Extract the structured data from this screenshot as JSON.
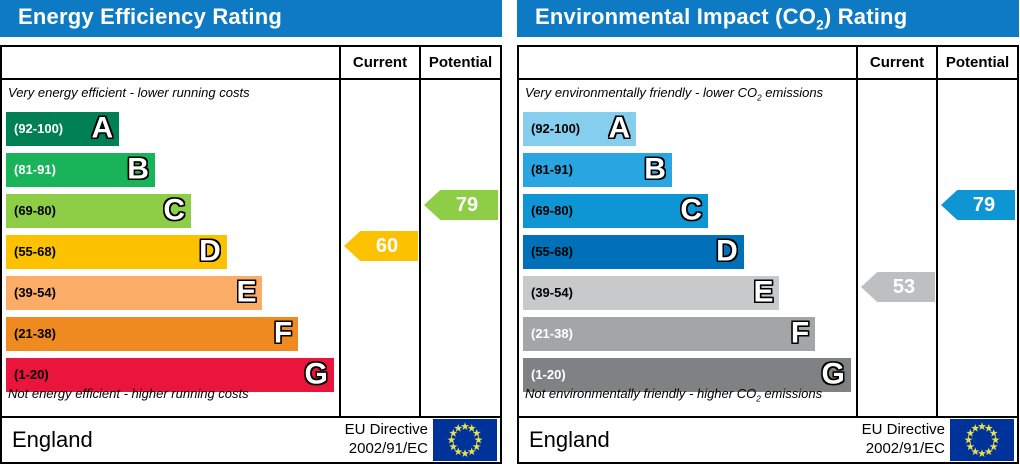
{
  "chart_data": [
    {
      "type": "bar",
      "title": "Energy Efficiency Rating",
      "categories": [
        "A (92-100)",
        "B (81-91)",
        "C (69-80)",
        "D (55-68)",
        "E (39-54)",
        "F (21-38)",
        "G (1-20)"
      ],
      "band_ranges": [
        [
          92,
          100
        ],
        [
          81,
          91
        ],
        [
          69,
          80
        ],
        [
          55,
          68
        ],
        [
          39,
          54
        ],
        [
          21,
          38
        ],
        [
          1,
          20
        ]
      ],
      "current": 60,
      "current_band": "D",
      "potential": 79,
      "potential_band": "C",
      "xlabel": "",
      "ylabel": "",
      "legend": [
        "Current",
        "Potential"
      ]
    },
    {
      "type": "bar",
      "title": "Environmental Impact (CO2) Rating",
      "categories": [
        "A (92-100)",
        "B (81-91)",
        "C (69-80)",
        "D (55-68)",
        "E (39-54)",
        "F (21-38)",
        "G (1-20)"
      ],
      "band_ranges": [
        [
          92,
          100
        ],
        [
          81,
          91
        ],
        [
          69,
          80
        ],
        [
          55,
          68
        ],
        [
          39,
          54
        ],
        [
          21,
          38
        ],
        [
          1,
          20
        ]
      ],
      "current": 53,
      "current_band": "E",
      "potential": 79,
      "potential_band": "C",
      "xlabel": "",
      "ylabel": "",
      "legend": [
        "Current",
        "Potential"
      ]
    }
  ],
  "header_color": "#0e7ac4",
  "panels": [
    {
      "title_pre": "Energy Efficiency Rating",
      "title_sub": "",
      "title_post": "",
      "columns": {
        "current": "Current",
        "potential": "Potential"
      },
      "caption_top_pre": "Very energy efficient - lower running costs",
      "caption_top_sub": "",
      "caption_top_post": "",
      "caption_bottom_pre": "Not energy efficient - higher running costs",
      "caption_bottom_sub": "",
      "caption_bottom_post": "",
      "bands": [
        {
          "grade": "A",
          "range": "(92-100)",
          "color": "#008054",
          "text_color": "#ffffff",
          "width_pct": 33.6
        },
        {
          "grade": "B",
          "range": "(81-91)",
          "color": "#19b459",
          "text_color": "#ffffff",
          "width_pct": 44.2
        },
        {
          "grade": "C",
          "range": "(69-80)",
          "color": "#8dce46",
          "text_color": "#000000",
          "width_pct": 54.9
        },
        {
          "grade": "D",
          "range": "(55-68)",
          "color": "#fcc200",
          "text_color": "#000000",
          "width_pct": 65.5
        },
        {
          "grade": "E",
          "range": "(39-54)",
          "color": "#fbac66",
          "text_color": "#000000",
          "width_pct": 76.1
        },
        {
          "grade": "F",
          "range": "(21-38)",
          "color": "#ef8a20",
          "text_color": "#000000",
          "width_pct": 86.7
        },
        {
          "grade": "G",
          "range": "(1-20)",
          "color": "#e9153b",
          "text_color": "#000000",
          "width_pct": 97.3
        }
      ],
      "current": {
        "value": "60",
        "grade_index": 3,
        "color": "#fcc200"
      },
      "potential": {
        "value": "79",
        "grade_index": 2,
        "color": "#8dce46"
      },
      "footer": {
        "region": "England",
        "directive_line1": "EU Directive",
        "directive_line2": "2002/91/EC"
      }
    },
    {
      "title_pre": "Environmental Impact (CO",
      "title_sub": "2",
      "title_post": ") Rating",
      "columns": {
        "current": "Current",
        "potential": "Potential"
      },
      "caption_top_pre": "Very environmentally friendly - lower CO",
      "caption_top_sub": "2",
      "caption_top_post": " emissions",
      "caption_bottom_pre": "Not environmentally friendly - higher CO",
      "caption_bottom_sub": "2",
      "caption_bottom_post": " emissions",
      "bands": [
        {
          "grade": "A",
          "range": "(92-100)",
          "color": "#86ceee",
          "text_color": "#000000",
          "width_pct": 33.6
        },
        {
          "grade": "B",
          "range": "(81-91)",
          "color": "#29a5e1",
          "text_color": "#000000",
          "width_pct": 44.2
        },
        {
          "grade": "C",
          "range": "(69-80)",
          "color": "#0e95d3",
          "text_color": "#000000",
          "width_pct": 54.9
        },
        {
          "grade": "D",
          "range": "(55-68)",
          "color": "#0071b8",
          "text_color": "#000000",
          "width_pct": 65.5
        },
        {
          "grade": "E",
          "range": "(39-54)",
          "color": "#c8c9ca",
          "text_color": "#000000",
          "width_pct": 76.1
        },
        {
          "grade": "F",
          "range": "(21-38)",
          "color": "#a3a5a7",
          "text_color": "#ffffff",
          "width_pct": 86.7
        },
        {
          "grade": "G",
          "range": "(1-20)",
          "color": "#7f8284",
          "text_color": "#ffffff",
          "width_pct": 97.3
        }
      ],
      "current": {
        "value": "53",
        "grade_index": 4,
        "color": "#bdbfc1"
      },
      "potential": {
        "value": "79",
        "grade_index": 2,
        "color": "#0e95d3"
      },
      "footer": {
        "region": "England",
        "directive_line1": "EU Directive",
        "directive_line2": "2002/91/EC"
      }
    }
  ],
  "flag": {
    "bg_color": "#003399",
    "star_color": "#e8e04e"
  }
}
